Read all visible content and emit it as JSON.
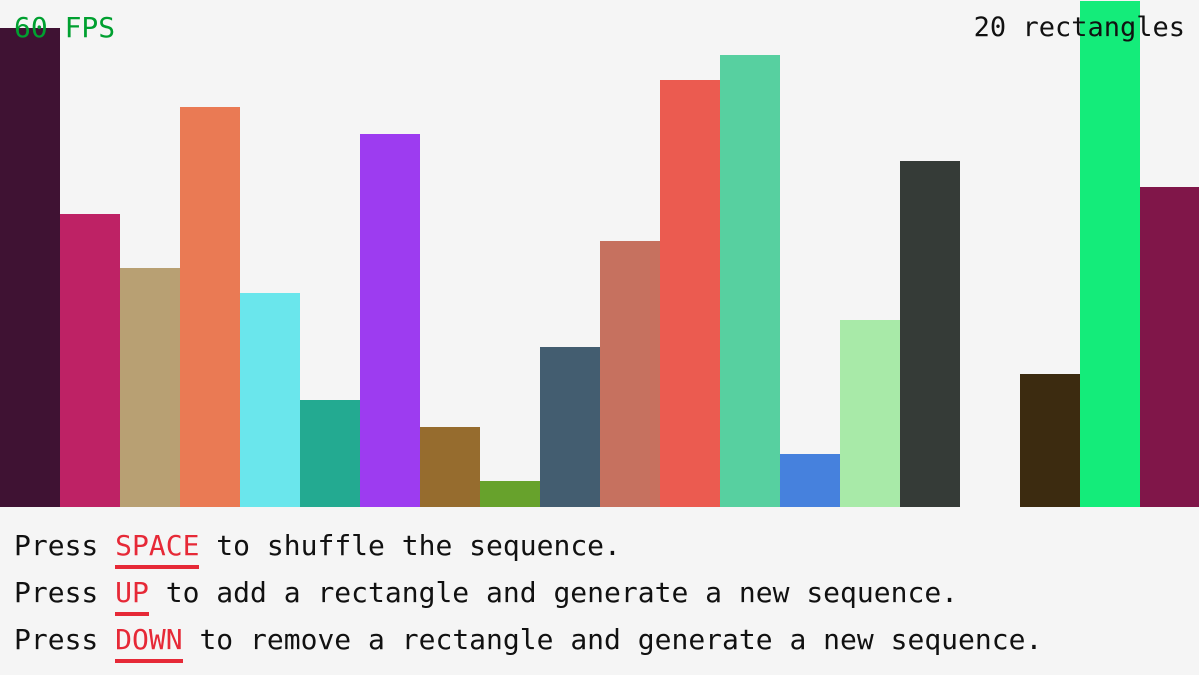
{
  "hud": {
    "fps": "60 FPS",
    "count": "20 rectangles",
    "fps_color": "#00a030"
  },
  "bars": {
    "values": [
      479,
      293,
      239,
      400,
      214,
      107,
      373,
      80,
      26,
      160,
      266,
      427,
      452,
      53,
      187,
      346,
      0,
      133,
      506,
      320
    ],
    "colors": [
      "#3f1233",
      "#be2265",
      "#b8a073",
      "#ea7a54",
      "#6ae6ec",
      "#23aa91",
      "#9d3cf0",
      "#966c2e",
      "#67a22c",
      "#435d70",
      "#c6715f",
      "#eb5b50",
      "#57d0a0",
      "#4681dd",
      "#a8eaa8",
      "#353b37",
      "#f5f5f5",
      "#3c2b10",
      "#14ec7a",
      "#801649"
    ]
  },
  "instructions": [
    {
      "prefix": "Press ",
      "key": "SPACE",
      "suffix": " to shuffle the sequence."
    },
    {
      "prefix": "Press ",
      "key": "UP",
      "suffix": " to add a rectangle and generate a new sequence."
    },
    {
      "prefix": "Press ",
      "key": "DOWN",
      "suffix": " to remove a rectangle and generate a new sequence."
    }
  ],
  "key_color": "#e62937"
}
